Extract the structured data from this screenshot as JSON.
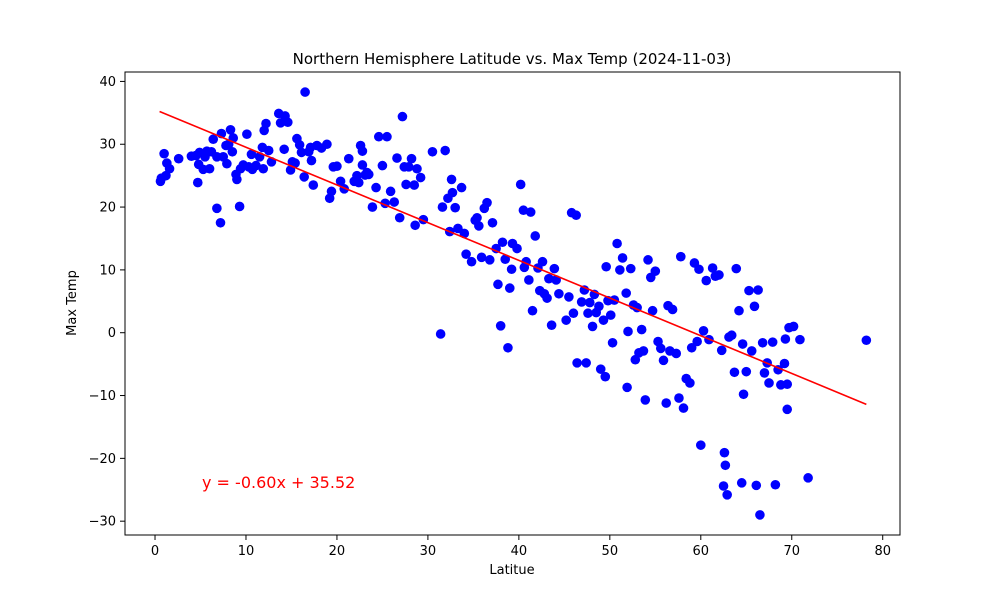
{
  "chart_data": {
    "type": "scatter",
    "title": "Northern Hemisphere Latitude vs. Max Temp (2024-11-03)",
    "xlabel": "Latitue",
    "ylabel": "Max Temp",
    "xlim": [
      -3.3,
      81.9
    ],
    "ylim": [
      -32.2,
      41.5
    ],
    "xticks": [
      0,
      10,
      20,
      30,
      40,
      50,
      60,
      70,
      80
    ],
    "yticks": [
      -30,
      -20,
      -10,
      0,
      10,
      20,
      30,
      40
    ],
    "grid": false,
    "marker_color": "#0000ff",
    "regression": {
      "slope": -0.6,
      "intercept": 35.52,
      "x_range": [
        0.5,
        78.2
      ],
      "color": "#ff0000",
      "equation_text": "y = -0.60x + 35.52"
    },
    "points": [
      [
        0.6,
        24.1
      ],
      [
        0.7,
        24.6
      ],
      [
        1.0,
        28.5
      ],
      [
        1.2,
        25.0
      ],
      [
        1.3,
        27.0
      ],
      [
        1.6,
        26.1
      ],
      [
        2.6,
        27.7
      ],
      [
        4.0,
        28.1
      ],
      [
        4.5,
        28.2
      ],
      [
        4.7,
        23.9
      ],
      [
        4.8,
        26.8
      ],
      [
        4.9,
        28.7
      ],
      [
        5.3,
        26.0
      ],
      [
        5.5,
        28.0
      ],
      [
        5.7,
        28.9
      ],
      [
        6.0,
        26.1
      ],
      [
        6.2,
        28.8
      ],
      [
        6.4,
        30.8
      ],
      [
        6.8,
        28.0
      ],
      [
        6.8,
        19.8
      ],
      [
        7.2,
        17.5
      ],
      [
        7.3,
        31.7
      ],
      [
        7.5,
        28.0
      ],
      [
        7.8,
        29.8
      ],
      [
        7.9,
        26.9
      ],
      [
        8.1,
        30.0
      ],
      [
        8.3,
        32.3
      ],
      [
        8.5,
        28.8
      ],
      [
        8.6,
        31.0
      ],
      [
        8.9,
        25.2
      ],
      [
        9.0,
        24.4
      ],
      [
        9.3,
        20.1
      ],
      [
        9.4,
        26.1
      ],
      [
        9.7,
        26.7
      ],
      [
        10.1,
        31.6
      ],
      [
        10.3,
        26.4
      ],
      [
        10.6,
        28.4
      ],
      [
        10.7,
        26.0
      ],
      [
        11.1,
        26.6
      ],
      [
        11.5,
        28.0
      ],
      [
        11.8,
        29.5
      ],
      [
        11.9,
        26.1
      ],
      [
        12.0,
        32.2
      ],
      [
        12.2,
        33.3
      ],
      [
        12.5,
        29.0
      ],
      [
        12.8,
        27.2
      ],
      [
        13.6,
        34.9
      ],
      [
        13.8,
        33.4
      ],
      [
        14.2,
        29.2
      ],
      [
        14.3,
        34.5
      ],
      [
        14.6,
        33.5
      ],
      [
        14.9,
        25.9
      ],
      [
        15.1,
        27.2
      ],
      [
        15.4,
        27.0
      ],
      [
        15.6,
        30.9
      ],
      [
        15.9,
        29.9
      ],
      [
        16.1,
        28.7
      ],
      [
        16.4,
        24.8
      ],
      [
        16.5,
        38.3
      ],
      [
        16.9,
        28.8
      ],
      [
        17.1,
        29.5
      ],
      [
        17.2,
        27.4
      ],
      [
        17.4,
        23.5
      ],
      [
        17.8,
        29.8
      ],
      [
        18.3,
        29.4
      ],
      [
        18.9,
        30.0
      ],
      [
        19.2,
        21.4
      ],
      [
        19.4,
        22.5
      ],
      [
        19.6,
        26.4
      ],
      [
        20.0,
        26.5
      ],
      [
        20.4,
        24.1
      ],
      [
        20.8,
        22.9
      ],
      [
        21.3,
        27.7
      ],
      [
        21.9,
        24.1
      ],
      [
        22.2,
        25.0
      ],
      [
        22.4,
        23.9
      ],
      [
        22.6,
        29.8
      ],
      [
        22.8,
        28.9
      ],
      [
        22.8,
        26.7
      ],
      [
        23.1,
        25.1
      ],
      [
        23.3,
        25.5
      ],
      [
        23.5,
        25.2
      ],
      [
        23.9,
        20.0
      ],
      [
        24.3,
        23.1
      ],
      [
        24.6,
        31.2
      ],
      [
        25.0,
        26.6
      ],
      [
        25.3,
        20.6
      ],
      [
        25.5,
        31.2
      ],
      [
        25.9,
        22.5
      ],
      [
        26.3,
        20.8
      ],
      [
        26.6,
        27.8
      ],
      [
        26.9,
        18.3
      ],
      [
        27.2,
        34.4
      ],
      [
        27.4,
        26.4
      ],
      [
        27.6,
        23.6
      ],
      [
        27.9,
        26.4
      ],
      [
        28.2,
        27.7
      ],
      [
        28.5,
        23.5
      ],
      [
        28.6,
        17.1
      ],
      [
        28.8,
        26.1
      ],
      [
        29.2,
        24.7
      ],
      [
        29.5,
        18.0
      ],
      [
        30.5,
        28.8
      ],
      [
        31.4,
        -0.2
      ],
      [
        31.6,
        20.0
      ],
      [
        31.9,
        29.0
      ],
      [
        32.2,
        21.4
      ],
      [
        32.4,
        16.1
      ],
      [
        32.6,
        24.4
      ],
      [
        32.7,
        22.3
      ],
      [
        33.0,
        19.9
      ],
      [
        33.3,
        16.6
      ],
      [
        33.7,
        23.1
      ],
      [
        34.0,
        15.8
      ],
      [
        34.2,
        12.5
      ],
      [
        34.8,
        11.3
      ],
      [
        35.2,
        17.9
      ],
      [
        35.4,
        18.3
      ],
      [
        35.6,
        17.0
      ],
      [
        35.9,
        12.0
      ],
      [
        36.2,
        19.8
      ],
      [
        36.5,
        20.7
      ],
      [
        36.8,
        11.6
      ],
      [
        37.1,
        17.5
      ],
      [
        37.5,
        13.4
      ],
      [
        37.7,
        7.7
      ],
      [
        38.0,
        1.1
      ],
      [
        38.2,
        14.4
      ],
      [
        38.5,
        11.7
      ],
      [
        38.8,
        -2.4
      ],
      [
        39.0,
        7.1
      ],
      [
        39.2,
        10.1
      ],
      [
        39.3,
        14.2
      ],
      [
        39.8,
        13.4
      ],
      [
        40.2,
        23.6
      ],
      [
        40.5,
        19.5
      ],
      [
        40.6,
        10.4
      ],
      [
        40.8,
        11.3
      ],
      [
        41.1,
        8.4
      ],
      [
        41.3,
        19.2
      ],
      [
        41.5,
        3.5
      ],
      [
        41.8,
        15.4
      ],
      [
        42.1,
        10.3
      ],
      [
        42.3,
        6.7
      ],
      [
        42.6,
        11.3
      ],
      [
        42.8,
        6.2
      ],
      [
        43.1,
        5.5
      ],
      [
        43.3,
        8.6
      ],
      [
        43.6,
        1.2
      ],
      [
        43.9,
        10.2
      ],
      [
        44.1,
        8.4
      ],
      [
        44.4,
        6.2
      ],
      [
        45.2,
        2.0
      ],
      [
        45.5,
        5.7
      ],
      [
        45.8,
        19.1
      ],
      [
        46.0,
        3.1
      ],
      [
        46.3,
        18.7
      ],
      [
        46.4,
        -4.8
      ],
      [
        46.9,
        4.9
      ],
      [
        47.2,
        6.8
      ],
      [
        47.4,
        -4.8
      ],
      [
        47.6,
        3.1
      ],
      [
        47.8,
        4.8
      ],
      [
        48.1,
        1.0
      ],
      [
        48.3,
        6.1
      ],
      [
        48.5,
        3.2
      ],
      [
        48.8,
        4.2
      ],
      [
        49.0,
        -5.8
      ],
      [
        49.3,
        2.0
      ],
      [
        49.5,
        -7.0
      ],
      [
        49.6,
        10.5
      ],
      [
        49.8,
        5.1
      ],
      [
        50.1,
        2.8
      ],
      [
        50.3,
        -1.6
      ],
      [
        50.5,
        5.2
      ],
      [
        50.8,
        14.2
      ],
      [
        51.1,
        10.0
      ],
      [
        51.4,
        11.9
      ],
      [
        51.8,
        6.3
      ],
      [
        51.9,
        -8.7
      ],
      [
        52.0,
        0.2
      ],
      [
        52.3,
        10.2
      ],
      [
        52.6,
        4.4
      ],
      [
        52.8,
        -4.3
      ],
      [
        53.0,
        4.0
      ],
      [
        53.2,
        -3.2
      ],
      [
        53.5,
        0.5
      ],
      [
        53.7,
        -2.9
      ],
      [
        53.9,
        -10.7
      ],
      [
        54.2,
        11.6
      ],
      [
        54.5,
        8.8
      ],
      [
        54.7,
        3.5
      ],
      [
        55.0,
        9.8
      ],
      [
        55.3,
        -1.4
      ],
      [
        55.6,
        -2.5
      ],
      [
        55.9,
        -4.4
      ],
      [
        56.2,
        -11.2
      ],
      [
        56.4,
        4.3
      ],
      [
        56.6,
        -2.9
      ],
      [
        56.9,
        3.7
      ],
      [
        57.3,
        -3.3
      ],
      [
        57.6,
        -10.4
      ],
      [
        57.8,
        12.1
      ],
      [
        58.1,
        -12.0
      ],
      [
        58.4,
        -7.3
      ],
      [
        58.8,
        -8.0
      ],
      [
        59.0,
        -2.4
      ],
      [
        59.3,
        11.1
      ],
      [
        59.6,
        -1.4
      ],
      [
        59.8,
        10.1
      ],
      [
        60.0,
        -17.9
      ],
      [
        60.3,
        0.3
      ],
      [
        60.6,
        8.3
      ],
      [
        60.9,
        -1.1
      ],
      [
        61.3,
        10.3
      ],
      [
        61.6,
        9.0
      ],
      [
        62.0,
        9.2
      ],
      [
        62.3,
        -2.8
      ],
      [
        62.5,
        -24.4
      ],
      [
        62.6,
        -19.1
      ],
      [
        62.7,
        -21.1
      ],
      [
        62.9,
        -25.8
      ],
      [
        63.1,
        -0.7
      ],
      [
        63.4,
        -0.4
      ],
      [
        63.7,
        -6.3
      ],
      [
        63.9,
        10.2
      ],
      [
        64.2,
        3.5
      ],
      [
        64.5,
        -23.9
      ],
      [
        64.6,
        -1.8
      ],
      [
        64.7,
        -9.8
      ],
      [
        65.0,
        -6.2
      ],
      [
        65.3,
        6.7
      ],
      [
        65.6,
        -2.9
      ],
      [
        65.9,
        4.2
      ],
      [
        66.1,
        -24.3
      ],
      [
        66.3,
        6.8
      ],
      [
        66.5,
        -29.0
      ],
      [
        66.8,
        -1.6
      ],
      [
        67.0,
        -6.4
      ],
      [
        67.3,
        -4.8
      ],
      [
        67.5,
        -8.0
      ],
      [
        67.9,
        -1.5
      ],
      [
        68.2,
        -24.2
      ],
      [
        68.5,
        -5.9
      ],
      [
        68.8,
        -8.3
      ],
      [
        69.2,
        -4.9
      ],
      [
        69.3,
        -1.0
      ],
      [
        69.5,
        -8.2
      ],
      [
        69.5,
        -12.2
      ],
      [
        69.7,
        0.8
      ],
      [
        70.2,
        1.0
      ],
      [
        70.9,
        -1.1
      ],
      [
        71.8,
        -23.1
      ],
      [
        78.2,
        -1.2
      ]
    ]
  }
}
